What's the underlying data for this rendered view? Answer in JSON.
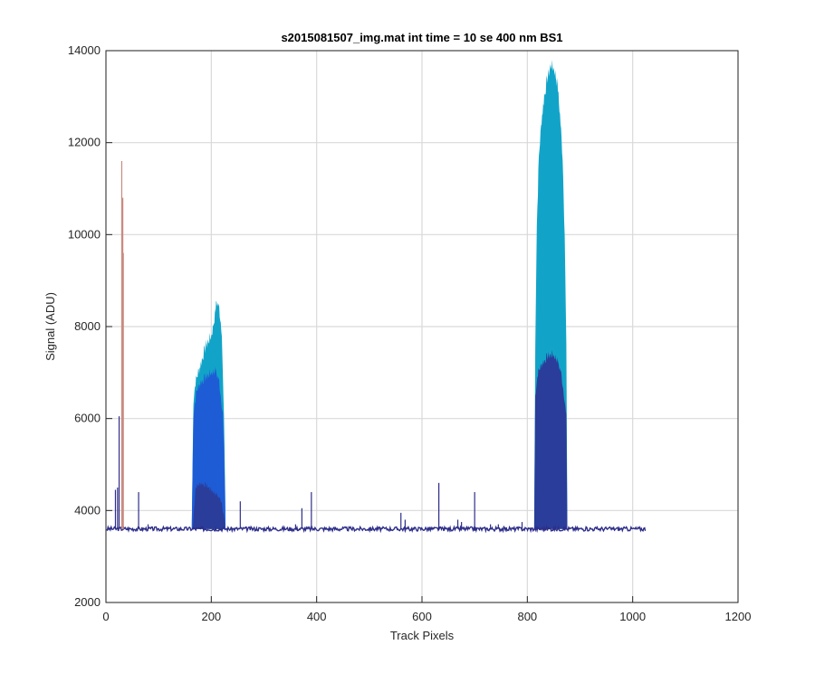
{
  "chart_data": {
    "type": "area",
    "title": "s2015081507_img.mat int time = 10 se  400 nm BS1",
    "xlabel": "Track Pixels",
    "ylabel": "Signal (ADU)",
    "xlim": [
      0,
      1200
    ],
    "ylim": [
      2000,
      14000
    ],
    "xticks": [
      0,
      200,
      400,
      600,
      800,
      1000,
      1200
    ],
    "yticks": [
      2000,
      4000,
      6000,
      8000,
      10000,
      12000,
      14000
    ],
    "grid": true,
    "baseline": 3600,
    "x_extent": [
      1,
      1024
    ],
    "colors": {
      "line": "#2e2e8a",
      "envelope_top": "#12a4c8",
      "envelope_mid": "#1e5cd6",
      "envelope_low": "#2a3d9a",
      "spike": "#c98a80"
    },
    "series": [
      {
        "values": {
          "peak_upper": [
            [
              163,
              3700
            ],
            [
              166,
              6400
            ],
            [
              170,
              6800
            ],
            [
              175,
              7000
            ],
            [
              180,
              7200
            ],
            [
              185,
              7400
            ],
            [
              190,
              7600
            ],
            [
              195,
              7700
            ],
            [
              200,
              7800
            ],
            [
              205,
              8100
            ],
            [
              210,
              8550
            ],
            [
              215,
              8400
            ],
            [
              220,
              7900
            ],
            [
              225,
              5500
            ],
            [
              227,
              3700
            ]
          ],
          "peak_mid": [
            [
              163,
              3700
            ],
            [
              166,
              6100
            ],
            [
              172,
              6600
            ],
            [
              180,
              6800
            ],
            [
              190,
              6900
            ],
            [
              200,
              7000
            ],
            [
              208,
              7050
            ],
            [
              215,
              6800
            ],
            [
              222,
              6100
            ],
            [
              226,
              4500
            ],
            [
              227,
              3700
            ]
          ],
          "peak_low": [
            [
              165,
              3650
            ],
            [
              170,
              4500
            ],
            [
              180,
              4600
            ],
            [
              190,
              4550
            ],
            [
              200,
              4450
            ],
            [
              210,
              4350
            ],
            [
              220,
              4200
            ],
            [
              226,
              3700
            ]
          ],
          "big_upper": [
            [
              813,
              3700
            ],
            [
              815,
              7500
            ],
            [
              818,
              10200
            ],
            [
              822,
              11700
            ],
            [
              827,
              12500
            ],
            [
              832,
              13000
            ],
            [
              838,
              13400
            ],
            [
              845,
              13700
            ],
            [
              851,
              13600
            ],
            [
              857,
              13300
            ],
            [
              862,
              12600
            ],
            [
              867,
              11700
            ],
            [
              871,
              10000
            ],
            [
              874,
              7500
            ],
            [
              876,
              3700
            ]
          ],
          "big_mid": [
            [
              813,
              3700
            ],
            [
              815,
              6500
            ],
            [
              820,
              7000
            ],
            [
              828,
              7200
            ],
            [
              838,
              7350
            ],
            [
              848,
              7400
            ],
            [
              856,
              7300
            ],
            [
              864,
              7000
            ],
            [
              870,
              6500
            ],
            [
              874,
              6000
            ],
            [
              876,
              3700
            ]
          ],
          "spikes": [
            [
              18,
              4450
            ],
            [
              22,
              4500
            ],
            [
              25,
              6050
            ],
            [
              30,
              11600
            ],
            [
              32,
              10800
            ],
            [
              33,
              9600
            ],
            [
              62,
              4400
            ],
            [
              80,
              3700
            ],
            [
              255,
              4200
            ],
            [
              360,
              3700
            ],
            [
              372,
              4050
            ],
            [
              390,
              4400
            ],
            [
              560,
              3950
            ],
            [
              568,
              3800
            ],
            [
              632,
              4600
            ],
            [
              668,
              3800
            ],
            [
              675,
              3750
            ],
            [
              700,
              4400
            ],
            [
              730,
              3700
            ],
            [
              745,
              3700
            ],
            [
              790,
              3750
            ]
          ]
        }
      }
    ]
  }
}
